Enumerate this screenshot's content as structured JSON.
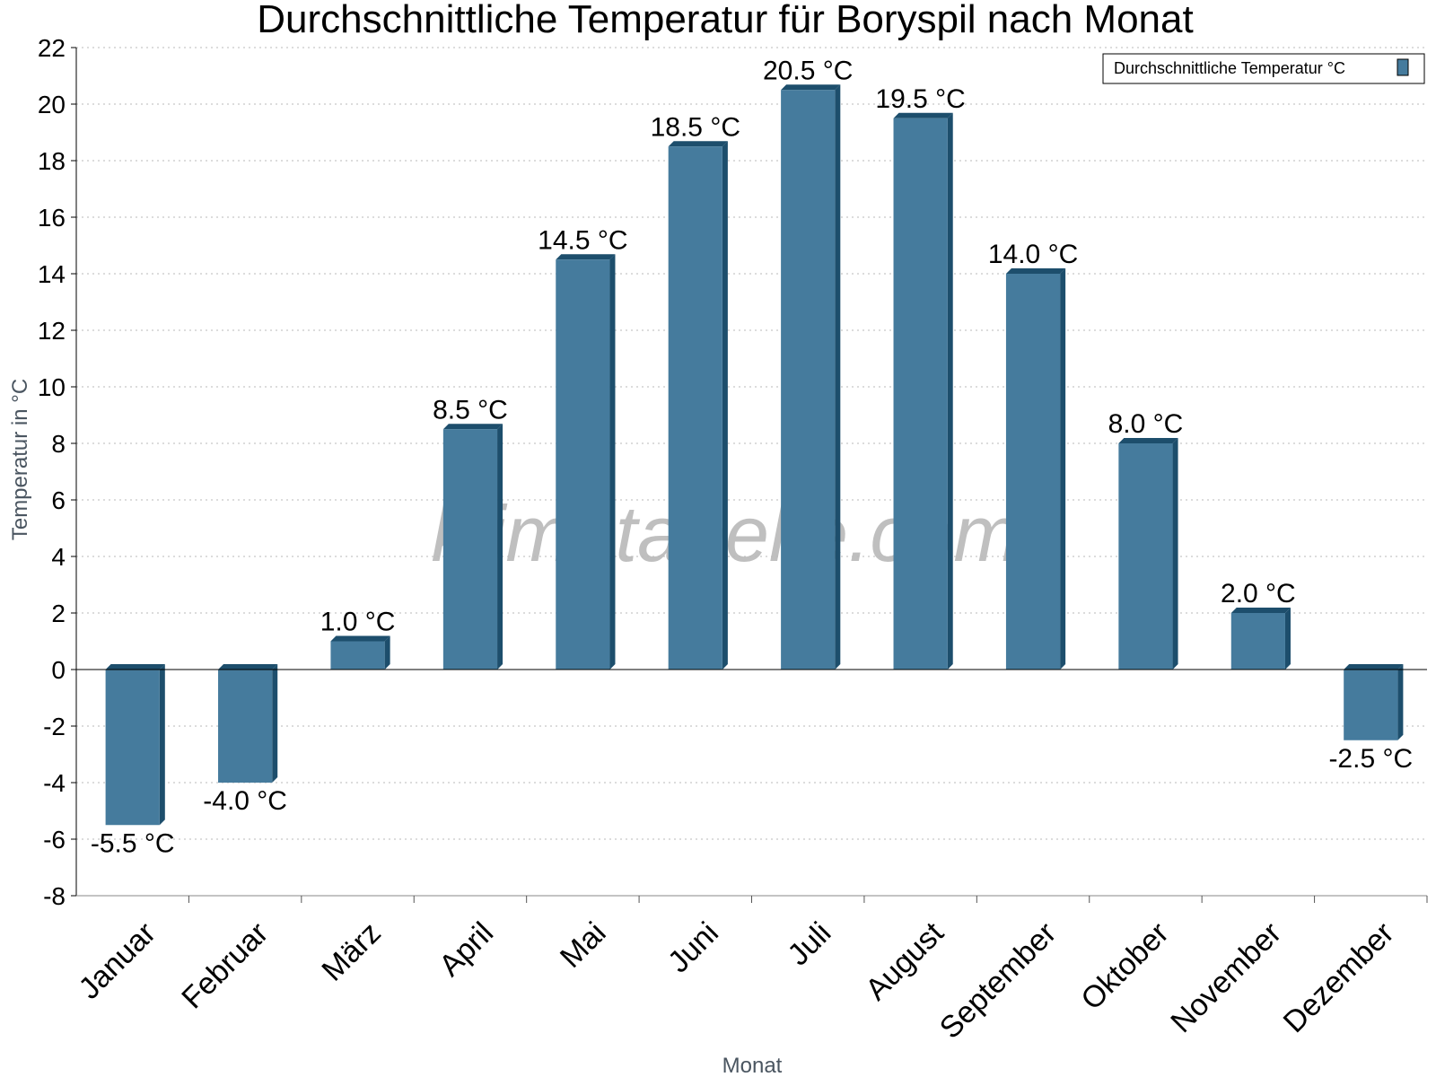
{
  "chart_data": {
    "type": "bar",
    "title": "Durchschnittliche Temperatur für Boryspil nach Monat",
    "xlabel": "Monat",
    "ylabel": "Temperatur in °C",
    "categories": [
      "Januar",
      "Februar",
      "März",
      "April",
      "Mai",
      "Juni",
      "Juli",
      "August",
      "September",
      "Oktober",
      "November",
      "Dezember"
    ],
    "series": [
      {
        "name": "Durchschnittliche Temperatur °C",
        "values": [
          -5.5,
          -4.0,
          1.0,
          8.5,
          14.5,
          18.5,
          20.5,
          19.5,
          14.0,
          8.0,
          2.0,
          -2.5
        ],
        "data_labels": [
          "-5.5 °C",
          "-4.0 °C",
          "1.0 °C",
          "8.5 °C",
          "14.5 °C",
          "18.5 °C",
          "20.5 °C",
          "19.5 °C",
          "14.0 °C",
          "8.0 °C",
          "2.0 °C",
          "-2.5 °C"
        ]
      }
    ],
    "ylim": [
      -8,
      22
    ],
    "yticks": [
      "-8",
      "-6",
      "-4",
      "-2",
      "0",
      "2",
      "4",
      "6",
      "8",
      "10",
      "12",
      "14",
      "16",
      "18",
      "20",
      "22"
    ],
    "grid": true,
    "legend_position": "top-right",
    "watermark": "klimatabelle.com",
    "colors": {
      "bar_front": "#457b9d",
      "bar_side": "#1d4e6c",
      "grid": "#b8b8b8",
      "axis": "#000000"
    }
  }
}
